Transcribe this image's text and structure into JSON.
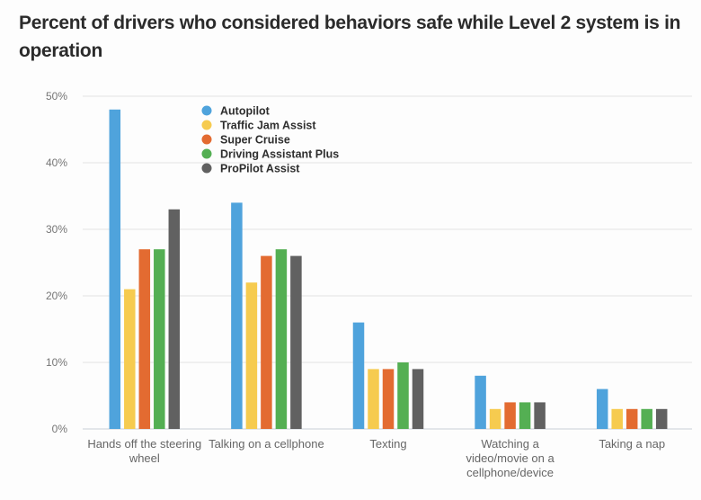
{
  "chart_data": {
    "type": "bar",
    "title": "Percent of drivers who considered behaviors safe while Level 2 system is in operation",
    "xlabel": "",
    "ylabel": "",
    "ylim": [
      0,
      50
    ],
    "yticks": [
      "0%",
      "10%",
      "20%",
      "30%",
      "40%",
      "50%"
    ],
    "ytick_values": [
      0,
      10,
      20,
      30,
      40,
      50
    ],
    "grid": true,
    "legend_position": "top-left",
    "categories": [
      [
        "Hands off the steering",
        "wheel"
      ],
      [
        "Talking on a cellphone"
      ],
      [
        "Texting"
      ],
      [
        "Watching a",
        "video/movie on a",
        "cellphone/device"
      ],
      [
        "Taking a nap"
      ]
    ],
    "series": [
      {
        "name": "Autopilot",
        "color": "#4fa3dc",
        "values": [
          48,
          34,
          16,
          8,
          6
        ]
      },
      {
        "name": "Traffic Jam Assist",
        "color": "#f6cb4f",
        "values": [
          21,
          22,
          9,
          3,
          3
        ]
      },
      {
        "name": "Super Cruise",
        "color": "#e36b31",
        "values": [
          27,
          26,
          9,
          4,
          3
        ]
      },
      {
        "name": "Driving Assistant Plus",
        "color": "#54af53",
        "values": [
          27,
          27,
          10,
          4,
          3
        ]
      },
      {
        "name": "ProPilot Assist",
        "color": "#616161",
        "values": [
          33,
          26,
          9,
          4,
          3
        ]
      }
    ]
  }
}
